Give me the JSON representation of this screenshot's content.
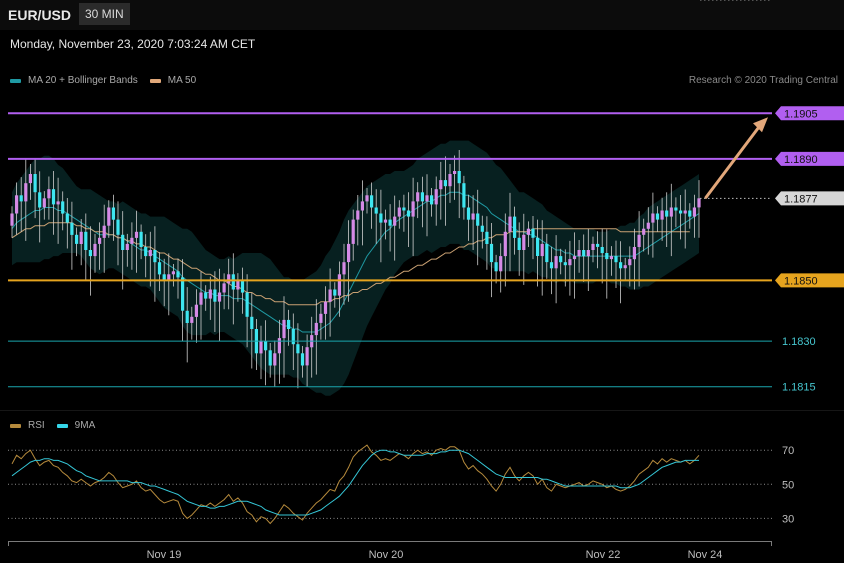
{
  "header": {
    "symbol": "EUR/USD",
    "interval": "30 MIN"
  },
  "timestamp": "Monday, November 23, 2020 7:03:24 AM CET",
  "credit": "Research © 2020 Trading Central",
  "legend_main": [
    {
      "label": "MA 20 + Bollinger Bands",
      "color": "#1f9aa3"
    },
    {
      "label": "MA 50",
      "color": "#e0a87a"
    }
  ],
  "legend_rsi": [
    {
      "label": "RSI",
      "color": "#b58a3c"
    },
    {
      "label": "9MA",
      "color": "#35d6e8"
    }
  ],
  "colors": {
    "up": "#d58ae6",
    "down": "#3ee6f0",
    "resistance": "#b15ff0",
    "pivot": "#e6a41e",
    "support": "#1aa5ad"
  },
  "chart_data": [
    {
      "type": "candlestick",
      "title": "",
      "x_ticks": [
        "Nov 19",
        "Nov 20",
        "Nov 22",
        "Nov 24"
      ],
      "ylim": [
        1.1808,
        1.1912
      ],
      "levels": [
        {
          "label": "1.1905",
          "value": 1.1905,
          "kind": "resistance"
        },
        {
          "label": "1.1890",
          "value": 1.189,
          "kind": "resistance"
        },
        {
          "label": "1.1877",
          "value": 1.1877,
          "kind": "last"
        },
        {
          "label": "1.1850",
          "value": 1.185,
          "kind": "pivot"
        },
        {
          "label": "1.1830",
          "value": 1.183,
          "kind": "support"
        },
        {
          "label": "1.1815",
          "value": 1.1815,
          "kind": "support"
        }
      ],
      "close": [
        1.1872,
        1.1878,
        1.1876,
        1.1882,
        1.1885,
        1.1879,
        1.1874,
        1.1877,
        1.188,
        1.1875,
        1.1876,
        1.1872,
        1.1869,
        1.1865,
        1.1862,
        1.1866,
        1.186,
        1.1858,
        1.1862,
        1.1864,
        1.1868,
        1.1874,
        1.187,
        1.1865,
        1.186,
        1.1862,
        1.1864,
        1.1866,
        1.1861,
        1.1858,
        1.186,
        1.1856,
        1.1852,
        1.185,
        1.1852,
        1.1853,
        1.1851,
        1.184,
        1.1836,
        1.1838,
        1.1842,
        1.1846,
        1.1844,
        1.1847,
        1.1843,
        1.1846,
        1.1849,
        1.1852,
        1.1847,
        1.185,
        1.1846,
        1.1838,
        1.1834,
        1.1826,
        1.183,
        1.1827,
        1.1822,
        1.1826,
        1.1831,
        1.1837,
        1.1834,
        1.1829,
        1.1826,
        1.1822,
        1.1828,
        1.1832,
        1.1836,
        1.1839,
        1.1843,
        1.1847,
        1.1845,
        1.1852,
        1.1856,
        1.1862,
        1.187,
        1.1873,
        1.1876,
        1.1878,
        1.1874,
        1.1872,
        1.1869,
        1.187,
        1.1868,
        1.1871,
        1.1874,
        1.1873,
        1.1871,
        1.1876,
        1.1879,
        1.1876,
        1.1878,
        1.1875,
        1.188,
        1.1883,
        1.1881,
        1.1885,
        1.1886,
        1.1882,
        1.1874,
        1.187,
        1.1872,
        1.1868,
        1.1866,
        1.1862,
        1.1856,
        1.1853,
        1.1858,
        1.1866,
        1.1871,
        1.1864,
        1.186,
        1.1865,
        1.1867,
        1.1864,
        1.1858,
        1.1862,
        1.1856,
        1.1854,
        1.1858,
        1.1856,
        1.1855,
        1.1857,
        1.1858,
        1.186,
        1.1858,
        1.186,
        1.1862,
        1.1861,
        1.1859,
        1.1857,
        1.1858,
        1.1856,
        1.1854,
        1.1855,
        1.1857,
        1.1861,
        1.1865,
        1.1867,
        1.1869,
        1.1872,
        1.187,
        1.1873,
        1.1871,
        1.1874,
        1.1873,
        1.1872,
        1.1873,
        1.1871,
        1.1874,
        1.1877
      ],
      "ma20": [
        1.1867,
        1.1869,
        1.187,
        1.1871,
        1.1872,
        1.1873,
        1.1873,
        1.1874,
        1.1874,
        1.1874,
        1.1873,
        1.1873,
        1.1872,
        1.1871,
        1.187,
        1.1869,
        1.1868,
        1.1867,
        1.1866,
        1.1865,
        1.1865,
        1.1865,
        1.1865,
        1.1864,
        1.1864,
        1.1863,
        1.1862,
        1.1861,
        1.186,
        1.186,
        1.1859,
        1.1858,
        1.1857,
        1.1856,
        1.1855,
        1.1854,
        1.1853,
        1.1851,
        1.185,
        1.1849,
        1.1848,
        1.1847,
        1.1846,
        1.1846,
        1.1845,
        1.1845,
        1.1845,
        1.1845,
        1.1844,
        1.1844,
        1.1844,
        1.1843,
        1.1842,
        1.1841,
        1.184,
        1.1839,
        1.1838,
        1.1837,
        1.1836,
        1.1835,
        1.1835,
        1.1834,
        1.1834,
        1.1833,
        1.1833,
        1.1833,
        1.1833,
        1.1834,
        1.1835,
        1.1836,
        1.1838,
        1.184,
        1.1843,
        1.1846,
        1.1849,
        1.1852,
        1.1855,
        1.1858,
        1.186,
        1.1862,
        1.1864,
        1.1866,
        1.1867,
        1.1869,
        1.187,
        1.1871,
        1.1872,
        1.1873,
        1.1874,
        1.1875,
        1.1876,
        1.1876,
        1.1877,
        1.1878,
        1.1878,
        1.1879,
        1.1879,
        1.1879,
        1.1878,
        1.1878,
        1.1877,
        1.1876,
        1.1875,
        1.1874,
        1.1872,
        1.1871,
        1.187,
        1.1869,
        1.1868,
        1.1867,
        1.1866,
        1.1866,
        1.1865,
        1.1865,
        1.1864,
        1.1863,
        1.1862,
        1.1861,
        1.186,
        1.186,
        1.1859,
        1.1859,
        1.1858,
        1.1858,
        1.1858,
        1.1858,
        1.1858,
        1.1858,
        1.1858,
        1.1858,
        1.1858,
        1.1858,
        1.1858,
        1.1858,
        1.1858,
        1.1858,
        1.1859,
        1.186,
        1.1861,
        1.1862,
        1.1863,
        1.1864,
        1.1865,
        1.1866,
        1.1867,
        1.1868,
        1.1869,
        1.187,
        1.1871,
        1.1872
      ],
      "ma50": [
        1.1864,
        1.1865,
        1.1866,
        1.1867,
        1.1867,
        1.1868,
        1.1868,
        1.1868,
        1.1869,
        1.1869,
        1.1869,
        1.1869,
        1.1869,
        1.1869,
        1.1868,
        1.1868,
        1.1867,
        1.1867,
        1.1866,
        1.1866,
        1.1866,
        1.1865,
        1.1865,
        1.1864,
        1.1864,
        1.1863,
        1.1863,
        1.1862,
        1.1862,
        1.1861,
        1.1861,
        1.186,
        1.1859,
        1.1859,
        1.1858,
        1.1857,
        1.1857,
        1.1856,
        1.1855,
        1.1854,
        1.1854,
        1.1853,
        1.1852,
        1.1852,
        1.1851,
        1.185,
        1.185,
        1.1849,
        1.1848,
        1.1848,
        1.1847,
        1.1846,
        1.1846,
        1.1845,
        1.1845,
        1.1844,
        1.1844,
        1.1843,
        1.1843,
        1.1843,
        1.1842,
        1.1842,
        1.1842,
        1.1842,
        1.1842,
        1.1842,
        1.1842,
        1.1843,
        1.1843,
        1.1843,
        1.1844,
        1.1844,
        1.1845,
        1.1845,
        1.1846,
        1.1846,
        1.1847,
        1.1847,
        1.1848,
        1.1849,
        1.1849,
        1.185,
        1.1851,
        1.1851,
        1.1852,
        1.1853,
        1.1853,
        1.1854,
        1.1855,
        1.1855,
        1.1856,
        1.1857,
        1.1857,
        1.1858,
        1.1859,
        1.1859,
        1.186,
        1.1861,
        1.1861,
        1.1862,
        1.1862,
        1.1863,
        1.1863,
        1.1864,
        1.1864,
        1.1865,
        1.1865,
        1.1865,
        1.1866,
        1.1866,
        1.1866,
        1.1866,
        1.1866,
        1.1867,
        1.1867,
        1.1867,
        1.1867,
        1.1867,
        1.1867,
        1.1867,
        1.1867,
        1.1867,
        1.1867,
        1.1867,
        1.1867,
        1.1867,
        1.1867,
        1.1867,
        1.1867,
        1.1867,
        1.1867,
        1.1867,
        1.1866,
        1.1866,
        1.1866,
        1.1866,
        1.1866,
        1.1866,
        1.1866,
        1.1866,
        1.1866,
        1.1866,
        1.1866,
        1.1866,
        1.1866,
        1.1866,
        1.1866,
        1.1866
      ],
      "band_width": [
        0.0012,
        0.0013,
        0.0014,
        0.0015,
        0.0016,
        0.0017,
        0.0017,
        0.0017,
        0.0017,
        0.0016,
        0.0015,
        0.0014,
        0.0013,
        0.0012,
        0.0011,
        0.0011,
        0.0012,
        0.0013,
        0.0013,
        0.0013,
        0.0012,
        0.0011,
        0.0011,
        0.0011,
        0.0012,
        0.0012,
        0.0012,
        0.0012,
        0.0012,
        0.0012,
        0.0012,
        0.0013,
        0.0014,
        0.0015,
        0.0015,
        0.0015,
        0.0015,
        0.0016,
        0.0017,
        0.0017,
        0.0016,
        0.0015,
        0.0014,
        0.0013,
        0.0013,
        0.0012,
        0.0012,
        0.0013,
        0.0013,
        0.0014,
        0.0015,
        0.0016,
        0.0017,
        0.0018,
        0.0019,
        0.0019,
        0.0019,
        0.0018,
        0.0017,
        0.0016,
        0.0016,
        0.0016,
        0.0016,
        0.0017,
        0.0018,
        0.0019,
        0.002,
        0.0021,
        0.0023,
        0.0024,
        0.0025,
        0.0026,
        0.0027,
        0.0027,
        0.0026,
        0.0025,
        0.0024,
        0.0023,
        0.0022,
        0.0021,
        0.002,
        0.0019,
        0.0018,
        0.0017,
        0.0016,
        0.0015,
        0.0015,
        0.0015,
        0.0016,
        0.0016,
        0.0016,
        0.0017,
        0.0017,
        0.0017,
        0.0017,
        0.0017,
        0.0017,
        0.0017,
        0.0018,
        0.0018,
        0.0018,
        0.0018,
        0.0018,
        0.0018,
        0.0018,
        0.0017,
        0.0017,
        0.0016,
        0.0015,
        0.0014,
        0.0013,
        0.0013,
        0.0013,
        0.0012,
        0.0012,
        0.0012,
        0.0011,
        0.0011,
        0.0011,
        0.001,
        0.001,
        0.0009,
        0.0009,
        0.0009,
        0.0009,
        0.0009,
        0.0009,
        0.0008,
        0.0008,
        0.0008,
        0.0009,
        0.0009,
        0.001,
        0.001,
        0.0011,
        0.0011,
        0.0012,
        0.0012,
        0.0013,
        0.0013,
        0.0013,
        0.0013,
        0.0013,
        0.0013,
        0.0013,
        0.0013,
        0.0013,
        0.0013,
        0.0013,
        0.0013
      ]
    },
    {
      "type": "line",
      "title": "",
      "ylim": [
        22,
        76
      ],
      "y_ticks": [
        30,
        50,
        70
      ],
      "series": [
        {
          "name": "RSI",
          "values": [
            62,
            67,
            65,
            68,
            70,
            65,
            61,
            63,
            64,
            61,
            60,
            57,
            55,
            52,
            51,
            53,
            51,
            49,
            51,
            52,
            54,
            57,
            55,
            51,
            48,
            49,
            50,
            52,
            48,
            46,
            47,
            44,
            41,
            39,
            40,
            41,
            40,
            33,
            30,
            32,
            35,
            38,
            37,
            39,
            37,
            39,
            41,
            44,
            40,
            42,
            39,
            34,
            32,
            28,
            31,
            30,
            27,
            30,
            34,
            38,
            36,
            33,
            31,
            29,
            33,
            36,
            39,
            41,
            44,
            47,
            46,
            52,
            55,
            60,
            66,
            69,
            71,
            73,
            69,
            67,
            64,
            65,
            64,
            66,
            68,
            67,
            65,
            68,
            70,
            68,
            69,
            67,
            70,
            71,
            70,
            72,
            72,
            70,
            63,
            59,
            61,
            58,
            56,
            53,
            49,
            46,
            50,
            56,
            60,
            55,
            52,
            55,
            57,
            55,
            50,
            53,
            48,
            46,
            50,
            49,
            48,
            49,
            50,
            51,
            49,
            50,
            52,
            51,
            50,
            48,
            49,
            47,
            46,
            47,
            49,
            52,
            56,
            58,
            60,
            64,
            62,
            65,
            63,
            65,
            64,
            63,
            64,
            62,
            64,
            67
          ]
        },
        {
          "name": "9MA",
          "values": [
            55,
            57,
            59,
            61,
            63,
            64,
            64,
            65,
            65,
            64,
            64,
            63,
            62,
            60,
            58,
            57,
            55,
            54,
            53,
            52,
            52,
            52,
            52,
            52,
            52,
            52,
            51,
            51,
            51,
            50,
            49,
            49,
            48,
            47,
            46,
            45,
            44,
            42,
            40,
            39,
            38,
            37,
            37,
            36,
            36,
            37,
            37,
            38,
            39,
            40,
            40,
            40,
            39,
            38,
            37,
            35,
            34,
            33,
            32,
            32,
            32,
            32,
            32,
            32,
            32,
            33,
            34,
            35,
            37,
            39,
            41,
            43,
            46,
            49,
            53,
            57,
            61,
            64,
            67,
            69,
            70,
            70,
            69,
            69,
            68,
            67,
            67,
            67,
            67,
            67,
            68,
            68,
            68,
            69,
            69,
            70,
            70,
            70,
            69,
            68,
            66,
            64,
            62,
            60,
            58,
            56,
            55,
            54,
            54,
            54,
            54,
            54,
            54,
            54,
            54,
            53,
            53,
            52,
            51,
            50,
            49,
            49,
            49,
            49,
            49,
            49,
            49,
            49,
            49,
            49,
            49,
            49,
            48,
            48,
            48,
            49,
            50,
            52,
            54,
            56,
            58,
            60,
            61,
            62,
            63,
            63,
            64,
            64,
            64,
            64
          ]
        }
      ]
    }
  ]
}
